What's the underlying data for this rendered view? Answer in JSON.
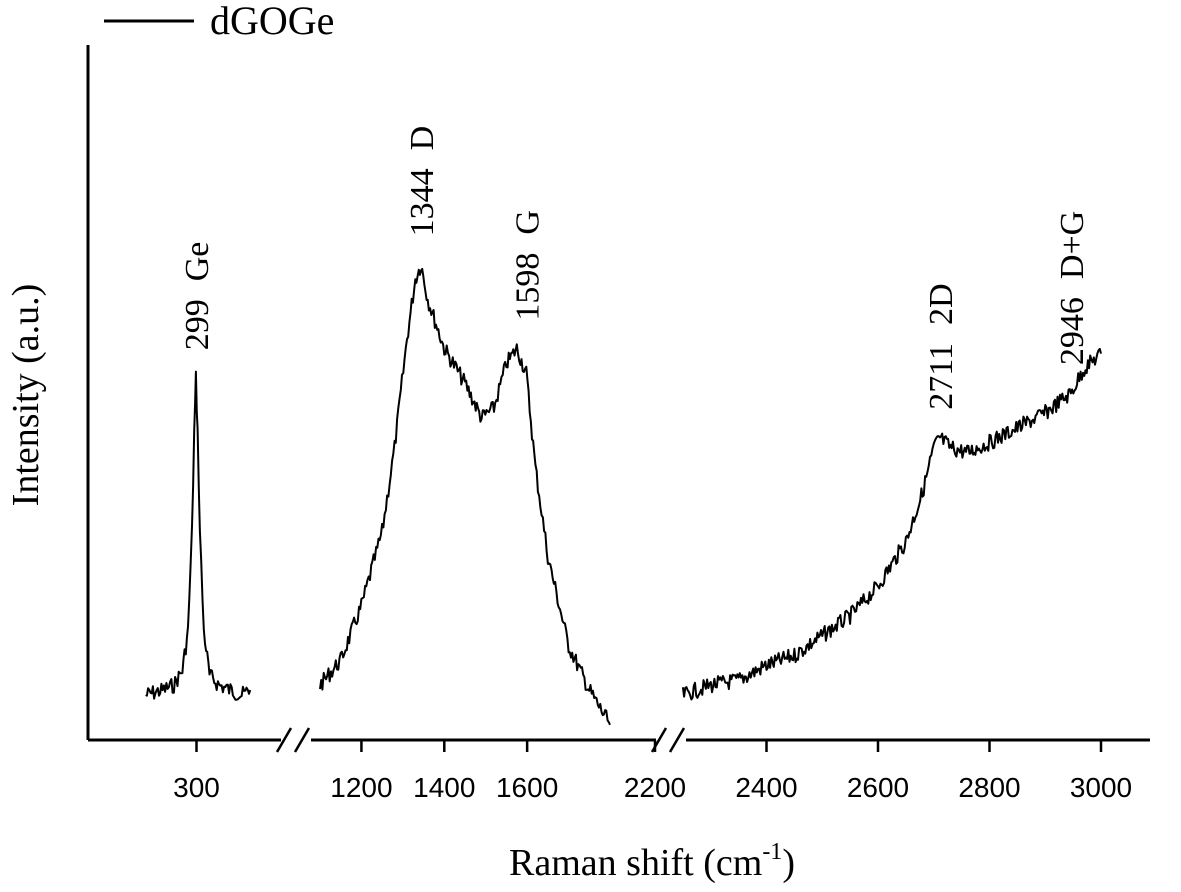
{
  "chart_data": {
    "type": "line",
    "title": "",
    "xlabel": "Raman shift (cm",
    "xlabel_superscript": "-1",
    "xlabel_suffix": ")",
    "ylabel": "Intensity (a.u.)",
    "broken_axis": true,
    "x_segments": [
      {
        "range": [
          200,
          400
        ],
        "ticks": [
          300
        ]
      },
      {
        "range": [
          1100,
          1800
        ],
        "ticks": [
          1200,
          1400,
          1600
        ]
      },
      {
        "range": [
          2200,
          3000
        ],
        "ticks": [
          2200,
          2400,
          2600,
          2800,
          3000
        ]
      }
    ],
    "legend": {
      "position": "top-left",
      "entries": [
        "dGOGe"
      ]
    },
    "series": [
      {
        "name": "dGOGe",
        "color": "#000000",
        "segments": [
          {
            "x": [
              210,
              240,
              260,
              275,
              285,
              292,
              296,
              299,
              302,
              306,
              313,
              323,
              340,
              360,
              380,
              395
            ],
            "y": [
              0.02,
              0.03,
              0.04,
              0.07,
              0.15,
              0.35,
              0.55,
              0.66,
              0.55,
              0.35,
              0.15,
              0.06,
              0.04,
              0.03,
              0.02,
              0.03
            ]
          },
          {
            "x": [
              1100,
              1150,
              1200,
              1250,
              1280,
              1310,
              1330,
              1344,
              1360,
              1400,
              1450,
              1490,
              1520,
              1550,
              1575,
              1598,
              1620,
              1650,
              1700,
              1750,
              1800
            ],
            "y": [
              0.04,
              0.09,
              0.2,
              0.35,
              0.52,
              0.74,
              0.86,
              0.89,
              0.82,
              0.72,
              0.65,
              0.58,
              0.6,
              0.69,
              0.72,
              0.67,
              0.48,
              0.3,
              0.12,
              0.03,
              -0.04
            ]
          },
          {
            "x": [
              2250,
              2300,
              2350,
              2400,
              2450,
              2500,
              2550,
              2600,
              2650,
              2680,
              2700,
              2711,
              2730,
              2760,
              2800,
              2850,
              2900,
              2946,
              2970,
              3000
            ],
            "y": [
              0.02,
              0.04,
              0.05,
              0.08,
              0.1,
              0.14,
              0.18,
              0.24,
              0.33,
              0.43,
              0.52,
              0.54,
              0.52,
              0.51,
              0.53,
              0.56,
              0.59,
              0.63,
              0.68,
              0.71
            ]
          }
        ]
      }
    ],
    "annotations": [
      {
        "x": 299,
        "y": 0.66,
        "value": "299",
        "label": "Ge"
      },
      {
        "x": 1344,
        "y": 0.89,
        "value": "1344",
        "label": "D"
      },
      {
        "x": 1598,
        "y": 0.72,
        "value": "1598",
        "label": "G"
      },
      {
        "x": 2711,
        "y": 0.54,
        "value": "2711",
        "label": "2D"
      },
      {
        "x": 2946,
        "y": 0.63,
        "value": "2946",
        "label": "D+G"
      }
    ]
  }
}
